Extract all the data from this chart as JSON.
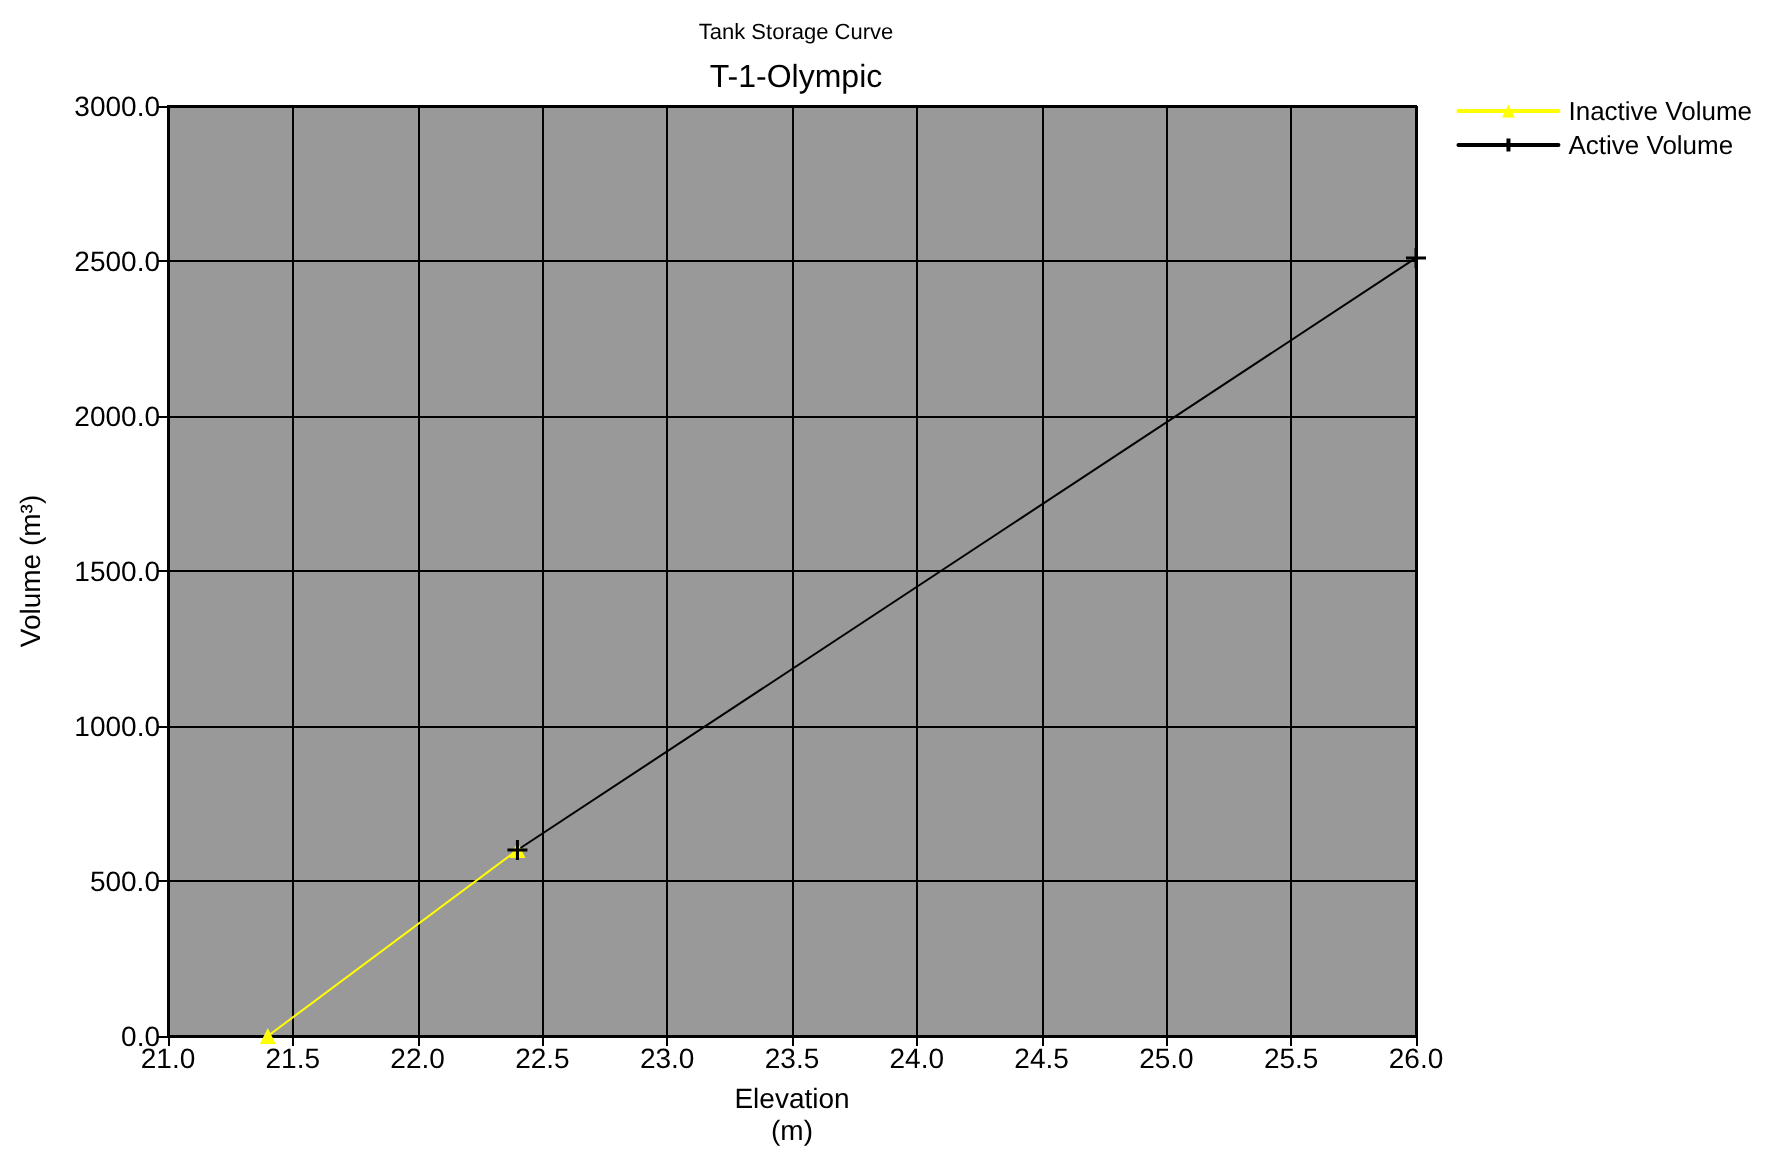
{
  "chart_data": {
    "type": "line",
    "title": "Tank Storage Curve",
    "subtitle": "T-1-Olympic",
    "xlabel": "Elevation\n(m)",
    "ylabel": "Volume (m³)",
    "series": [
      {
        "name": "Inactive Volume",
        "color": "#ffff00",
        "marker": "triangle",
        "x": [
          21.4,
          22.4
        ],
        "values": [
          0,
          600
        ]
      },
      {
        "name": "Active Volume",
        "color": "#000000",
        "marker": "cross",
        "x": [
          22.4,
          26.0
        ],
        "values": [
          600,
          2510
        ]
      }
    ],
    "xlim": [
      21.0,
      26.0
    ],
    "xticks": [
      {
        "value": 21,
        "label": "21.0"
      },
      {
        "value": 21.5,
        "label": "21.5"
      },
      {
        "value": 22,
        "label": "22.0"
      },
      {
        "value": 22.5,
        "label": "22.5"
      },
      {
        "value": 23,
        "label": "23.0"
      },
      {
        "value": 23.5,
        "label": "23.5"
      },
      {
        "value": 24,
        "label": "24.0"
      },
      {
        "value": 24.5,
        "label": "24.5"
      },
      {
        "value": 25,
        "label": "25.0"
      },
      {
        "value": 25.5,
        "label": "25.5"
      },
      {
        "value": 26,
        "label": "26.0"
      }
    ],
    "ylim": [
      0,
      3000
    ],
    "yticks": [
      {
        "value": 0,
        "label": "0.0"
      },
      {
        "value": 500,
        "label": "500.0"
      },
      {
        "value": 1000,
        "label": "1000.0"
      },
      {
        "value": 1500,
        "label": "1500.0"
      },
      {
        "value": 2000,
        "label": "2000.0"
      },
      {
        "value": 2500,
        "label": "2500.0"
      },
      {
        "value": 3000,
        "label": "3000.0"
      }
    ],
    "grid": true,
    "legend": "top right",
    "line_style": "solid"
  }
}
